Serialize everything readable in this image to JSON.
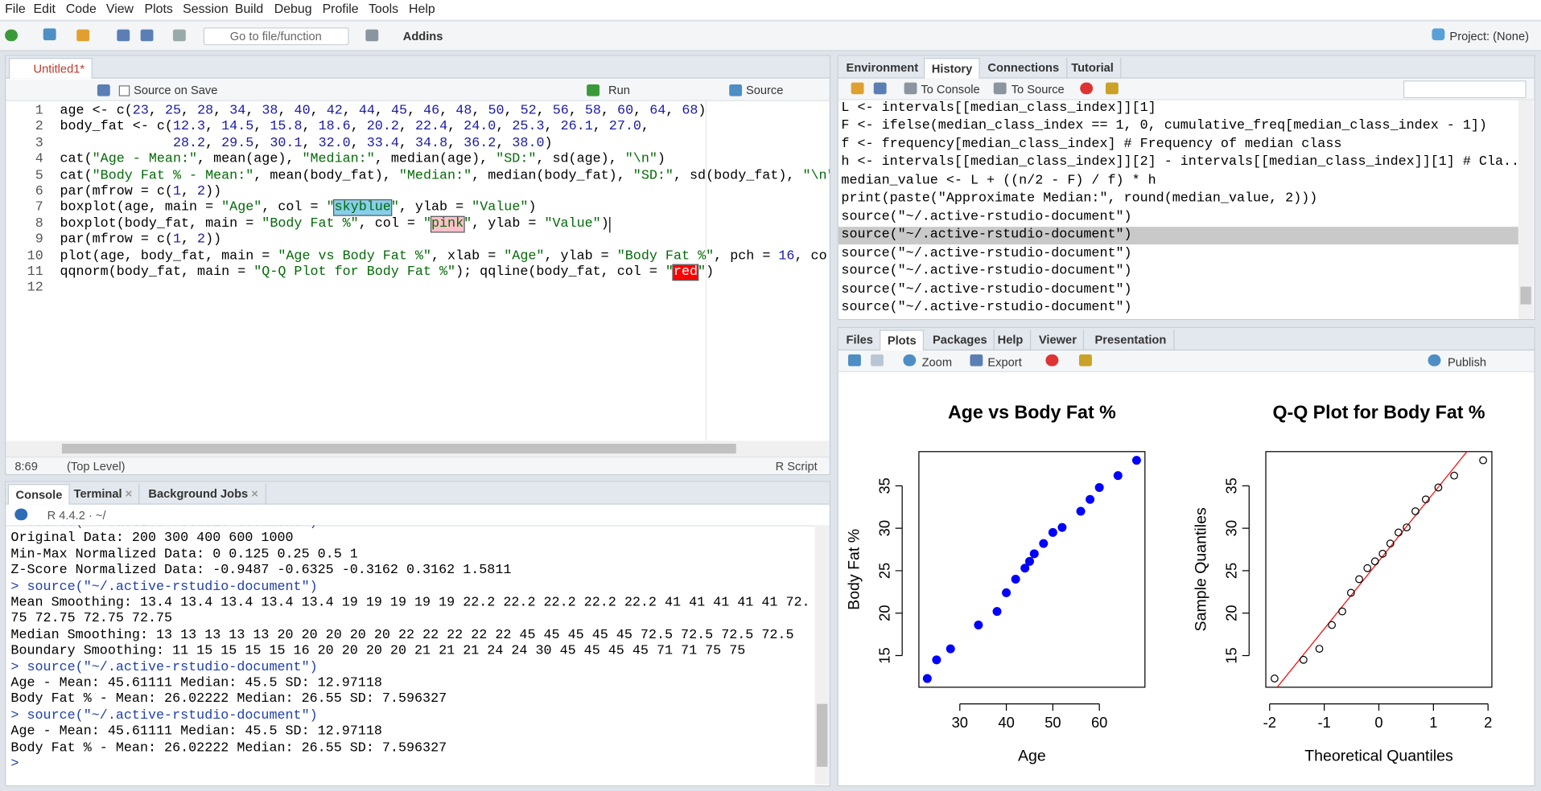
{
  "menu": [
    "File",
    "Edit",
    "Code",
    "View",
    "Plots",
    "Session",
    "Build",
    "Debug",
    "Profile",
    "Tools",
    "Help"
  ],
  "toolbar": {
    "go_to": "Go to file/function",
    "addins": "Addins",
    "project": "Project: (None)"
  },
  "editor": {
    "tab": "Untitled1*",
    "source_on_save": "Source on Save",
    "run": "Run",
    "source": "Source",
    "lines": [
      {
        "number": 1,
        "code": "age <- c(23, 25, 28, 34, 38, 40, 42, 44, 45, 46, 48, 50, 52, 56, 58, 60, 64, 68)"
      },
      {
        "number": 2,
        "code": "body_fat <- c(12.3, 14.5, 15.8, 18.6, 20.2, 22.4, 24.0, 25.3, 26.1, 27.0,"
      },
      {
        "number": 3,
        "code": "              28.2, 29.5, 30.1, 32.0, 33.4, 34.8, 36.2, 38.0)"
      },
      {
        "number": 4,
        "code": "cat(\"Age - Mean:\", mean(age), \"Median:\", median(age), \"SD:\", sd(age), \"\\n\")"
      },
      {
        "number": 5,
        "code": "cat(\"Body Fat % - Mean:\", mean(body_fat), \"Median:\", median(body_fat), \"SD:\", sd(body_fat), \"\\n\""
      },
      {
        "number": 6,
        "code": "par(mfrow = c(1, 2))"
      },
      {
        "number": 7,
        "code": "boxplot(age, main = \"Age\", col = \"skyblue\", ylab = \"Value\")"
      },
      {
        "number": 8,
        "code": "boxplot(body_fat, main = \"Body Fat %\", col = \"pink\", ylab = \"Value\")"
      },
      {
        "number": 9,
        "code": "par(mfrow = c(1, 2))"
      },
      {
        "number": 10,
        "code": "plot(age, body_fat, main = \"Age vs Body Fat %\", xlab = \"Age\", ylab = \"Body Fat %\", pch = 16, co"
      },
      {
        "number": 11,
        "code": "qqnorm(body_fat, main = \"Q-Q Plot for Body Fat %\"); qqline(body_fat, col = \"red\")"
      },
      {
        "number": 12
      }
    ],
    "cursor": "8:69",
    "scope": "(Top Level)",
    "file_type": "R Script"
  },
  "environment_pane": {
    "tabs": [
      "Environment",
      "History",
      "Connections",
      "Tutorial"
    ],
    "active_tab": 1,
    "to_console": "To Console",
    "to_source": "To Source",
    "history": [
      "L <- intervals[[median_class_index]][1]",
      "F <- ifelse(median_class_index == 1, 0, cumulative_freq[median_class_index - 1])",
      "f <- frequency[median_class_index] # Frequency of median class",
      "h <- intervals[[median_class_index]][2] - intervals[[median_class_index]][1] # Cla...",
      "median_value <- L + ((n/2 - F) / f) * h",
      "print(paste(\"Approximate Median:\", round(median_value, 2)))",
      "source(\"~/.active-rstudio-document\")",
      "source(\"~/.active-rstudio-document\")",
      "source(\"~/.active-rstudio-document\")",
      "source(\"~/.active-rstudio-document\")",
      "source(\"~/.active-rstudio-document\")",
      "source(\"~/.active-rstudio-document\")"
    ],
    "selected": 7
  },
  "files_pane": {
    "tabs": [
      "Files",
      "Plots",
      "Packages",
      "Help",
      "Viewer",
      "Presentation"
    ],
    "active_tab": 1,
    "zoom": "Zoom",
    "export": "Export",
    "publish": "Publish"
  },
  "console_pane": {
    "tabs": [
      "Console",
      "Terminal",
      "Background Jobs"
    ],
    "active_tab": 0,
    "r_version": "R 4.4.2 · ~/",
    "lines": [
      "> source(\"~/.active-rstudio-document\")",
      "Original Data: 200 300 400 600 1000",
      "Min-Max Normalized Data: 0 0.125 0.25 0.5 1",
      "Z-Score Normalized Data: -0.9487 -0.6325 -0.3162 0.3162 1.5811",
      "> source(\"~/.active-rstudio-document\")",
      "Mean Smoothing: 13.4 13.4 13.4 13.4 13.4 19 19 19 19 19 22.2 22.2 22.2 22.2 22.2 41 41 41 41 41 72.",
      "75 72.75 72.75 72.75",
      "Median Smoothing: 13 13 13 13 13 20 20 20 20 20 22 22 22 22 22 45 45 45 45 45 72.5 72.5 72.5 72.5",
      "Boundary Smoothing: 11 15 15 15 15 16 20 20 20 20 21 21 21 24 24 30 45 45 45 45 71 71 75 75",
      "> source(\"~/.active-rstudio-document\")",
      "Age - Mean: 45.61111 Median: 45.5 SD: 12.97118",
      "Body Fat % - Mean: 26.02222 Median: 26.55 SD: 7.596327",
      "> source(\"~/.active-rstudio-document\")",
      "Age - Mean: 45.61111 Median: 45.5 SD: 12.97118",
      "Body Fat % - Mean: 26.02222 Median: 26.55 SD: 7.596327"
    ],
    "prompt": ">"
  },
  "plots": [
    {
      "type": "scatter",
      "title": "Age vs Body Fat %",
      "xlabel": "Age",
      "ylabel": "Body Fat %",
      "x": [
        23,
        25,
        28,
        34,
        38,
        40,
        42,
        44,
        45,
        46,
        48,
        50,
        52,
        56,
        58,
        60,
        64,
        68
      ],
      "y": [
        12.3,
        14.5,
        15.8,
        18.6,
        20.2,
        22.4,
        24.0,
        25.3,
        26.1,
        27.0,
        28.2,
        29.5,
        30.1,
        32.0,
        33.4,
        34.8,
        36.2,
        38.0
      ],
      "xlim": [
        21.2,
        69.8
      ],
      "ylim": [
        11.272,
        39.028
      ],
      "xticks": [
        30,
        40,
        50,
        60
      ],
      "yticks": [
        15,
        20,
        25,
        30,
        35
      ],
      "color": "#0000ff",
      "marker": "filled"
    },
    {
      "type": "qq",
      "title": "Q-Q Plot for Body Fat %",
      "xlabel": "Theoretical Quantiles",
      "ylabel": "Sample Quantiles",
      "x": [
        -1.91,
        -1.38,
        -1.09,
        -0.86,
        -0.67,
        -0.51,
        -0.36,
        -0.21,
        -0.07,
        0.07,
        0.21,
        0.36,
        0.51,
        0.67,
        0.86,
        1.09,
        1.38,
        1.91
      ],
      "y": [
        12.3,
        14.5,
        15.8,
        18.6,
        20.2,
        22.4,
        24.0,
        25.3,
        26.1,
        27.0,
        28.2,
        29.5,
        30.1,
        32.0,
        33.4,
        34.8,
        36.2,
        38.0
      ],
      "xlim": [
        -2.07,
        2.07
      ],
      "ylim": [
        11.272,
        39.028
      ],
      "xticks": [
        -2,
        -1,
        0,
        1,
        2
      ],
      "yticks": [
        15,
        20,
        25,
        30,
        35
      ],
      "color": "#000000",
      "marker": "open",
      "line": {
        "intercept": 26.14,
        "slope": 7.99,
        "color": "#ff0000"
      }
    }
  ]
}
